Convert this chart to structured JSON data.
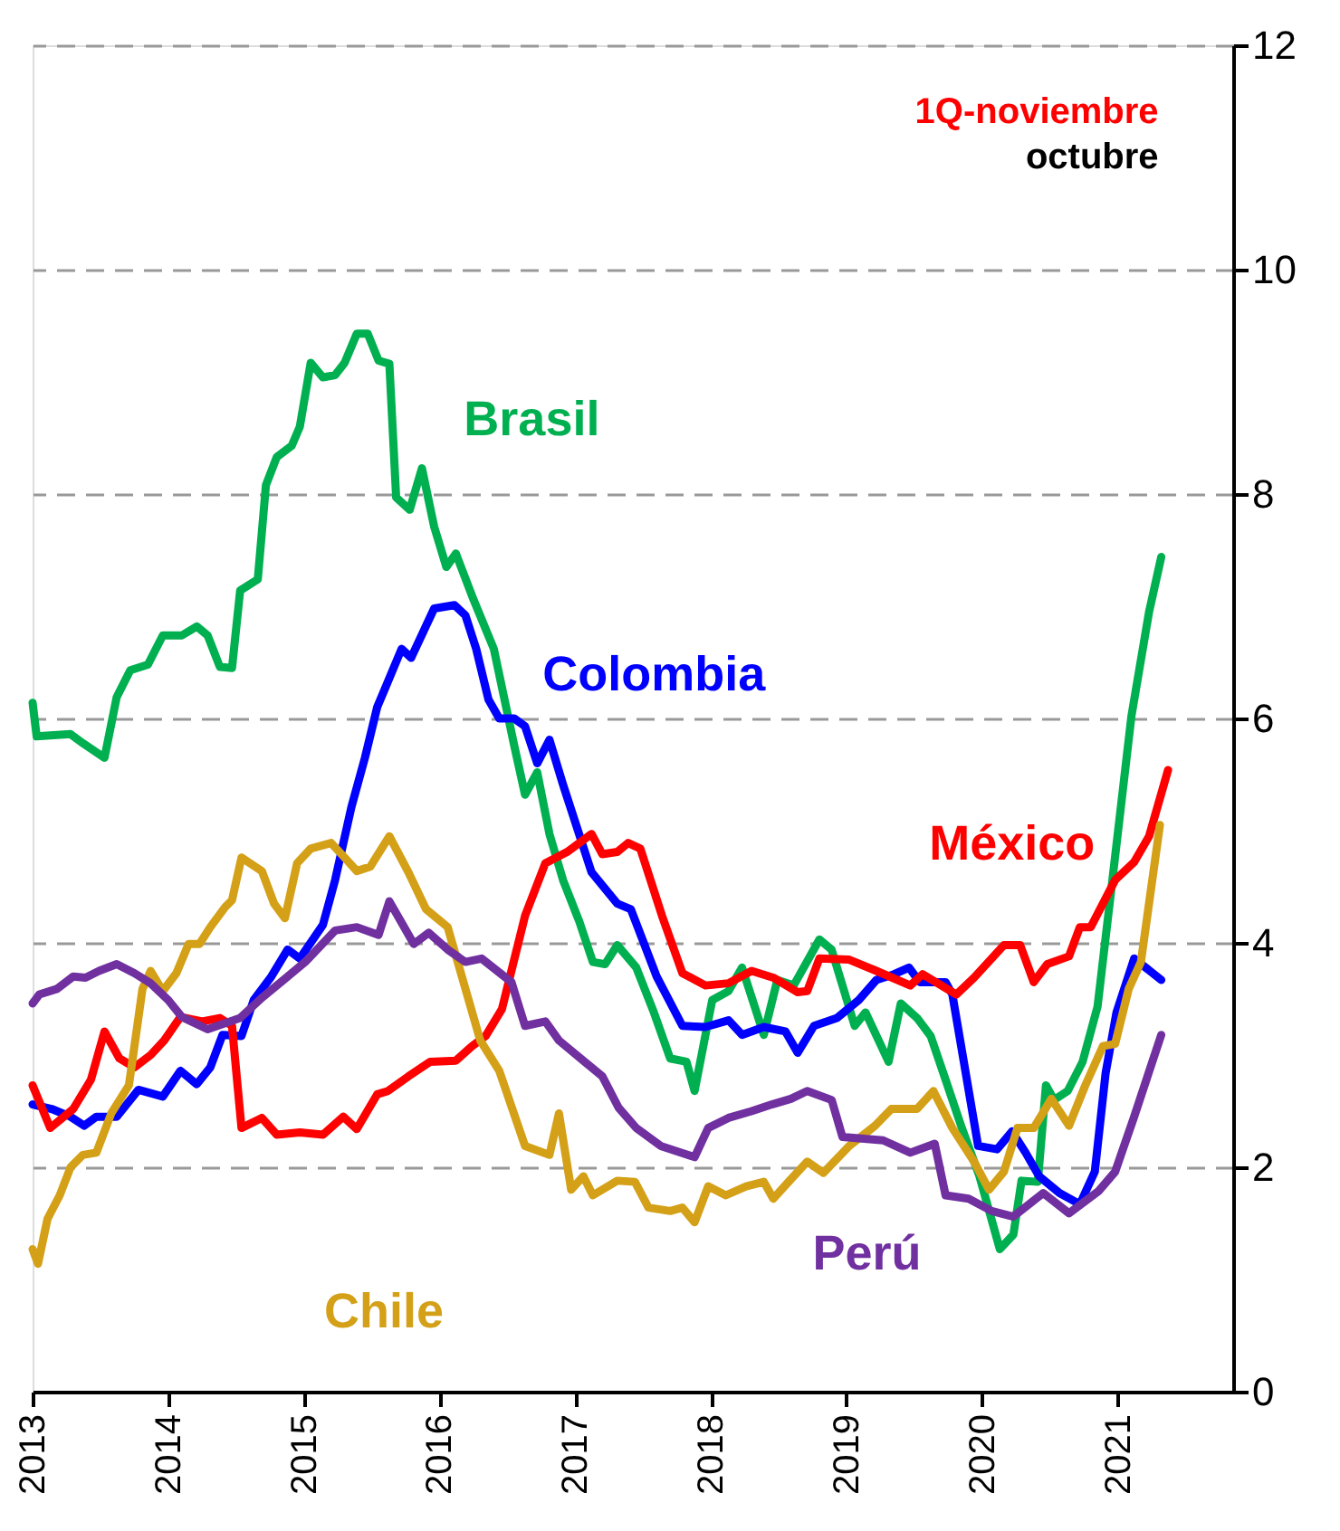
{
  "chart_data": {
    "type": "line",
    "xlim": [
      2013,
      2021.85
    ],
    "xticks": [
      2013,
      2014,
      2015,
      2016,
      2017,
      2018,
      2019,
      2020,
      2021
    ],
    "ylim": [
      0,
      12
    ],
    "yticks": [
      0,
      2,
      4,
      6,
      8,
      10,
      12
    ],
    "grid": "y",
    "legend": false,
    "line_style": "solid",
    "marker": "none",
    "annotations": [
      "1Q-noviembre",
      "octubre"
    ],
    "series": [
      {
        "name": "Brasil",
        "color": "#00b050",
        "x": [
          2013.0,
          2013.03,
          2013.28,
          2013.37,
          2013.53,
          2013.62,
          2013.72,
          2013.85,
          2013.96,
          2014.1,
          2014.21,
          2014.29,
          2014.38,
          2014.47,
          2014.53,
          2014.66,
          2014.72,
          2014.8,
          2014.91,
          2014.97,
          2015.05,
          2015.14,
          2015.23,
          2015.3,
          2015.39,
          2015.47,
          2015.55,
          2015.63,
          2015.68,
          2015.78,
          2015.87,
          2015.96,
          2016.05,
          2016.12,
          2016.25,
          2016.4,
          2016.55,
          2016.63,
          2016.72,
          2016.81,
          2016.91,
          2017.03,
          2017.13,
          2017.22,
          2017.31,
          2017.45,
          2017.58,
          2017.7,
          2017.82,
          2017.88,
          2018.01,
          2018.13,
          2018.23,
          2018.39,
          2018.49,
          2018.61,
          2018.8,
          2018.89,
          2019.06,
          2019.14,
          2019.31,
          2019.4,
          2019.52,
          2019.62,
          2019.73,
          2019.85,
          2019.98,
          2020.13,
          2020.23,
          2020.29,
          2020.41,
          2020.47,
          2020.53,
          2020.63,
          2020.74,
          2020.85,
          2020.95,
          2021.1,
          2021.23,
          2021.32
        ],
        "values": [
          6.14,
          5.84,
          5.86,
          5.78,
          5.65,
          6.19,
          6.43,
          6.48,
          6.74,
          6.74,
          6.82,
          6.74,
          6.46,
          6.45,
          7.14,
          7.24,
          8.08,
          8.33,
          8.43,
          8.6,
          9.17,
          9.04,
          9.06,
          9.17,
          9.43,
          9.43,
          9.19,
          9.16,
          7.97,
          7.86,
          8.23,
          7.71,
          7.35,
          7.47,
          7.06,
          6.62,
          5.76,
          5.32,
          5.52,
          4.97,
          4.56,
          4.19,
          3.83,
          3.81,
          3.98,
          3.78,
          3.38,
          2.97,
          2.94,
          2.68,
          3.49,
          3.57,
          3.78,
          3.18,
          3.67,
          3.62,
          4.03,
          3.94,
          3.26,
          3.38,
          2.94,
          3.46,
          3.33,
          3.17,
          2.78,
          2.35,
          1.92,
          1.27,
          1.4,
          1.88,
          1.87,
          2.73,
          2.6,
          2.68,
          2.94,
          3.43,
          4.46,
          6.02,
          6.95,
          7.44
        ]
      },
      {
        "name": "Colombia",
        "color": "#0000ff",
        "x": [
          2013.0,
          2013.14,
          2013.28,
          2013.38,
          2013.47,
          2013.62,
          2013.78,
          2013.96,
          2014.09,
          2014.21,
          2014.31,
          2014.4,
          2014.54,
          2014.63,
          2014.76,
          2014.88,
          2014.97,
          2015.14,
          2015.23,
          2015.35,
          2015.45,
          2015.54,
          2015.62,
          2015.72,
          2015.79,
          2015.96,
          2016.11,
          2016.19,
          2016.27,
          2016.36,
          2016.44,
          2016.55,
          2016.63,
          2016.72,
          2016.81,
          2016.91,
          2017.12,
          2017.31,
          2017.41,
          2017.6,
          2017.79,
          2017.96,
          2018.13,
          2018.23,
          2018.39,
          2018.55,
          2018.64,
          2018.76,
          2018.93,
          2019.09,
          2019.22,
          2019.35,
          2019.46,
          2019.54,
          2019.73,
          2019.78,
          2019.97,
          2020.11,
          2020.22,
          2020.32,
          2020.42,
          2020.57,
          2020.72,
          2020.83,
          2020.91,
          2020.99,
          2021.12,
          2021.32
        ],
        "values": [
          2.56,
          2.52,
          2.45,
          2.37,
          2.45,
          2.45,
          2.69,
          2.63,
          2.86,
          2.74,
          2.89,
          3.18,
          3.17,
          3.49,
          3.7,
          3.94,
          3.86,
          4.16,
          4.56,
          5.21,
          5.65,
          6.1,
          6.33,
          6.62,
          6.54,
          6.98,
          7.01,
          6.92,
          6.62,
          6.17,
          6.0,
          6.0,
          5.93,
          5.6,
          5.81,
          5.41,
          4.63,
          4.35,
          4.3,
          3.7,
          3.26,
          3.25,
          3.31,
          3.18,
          3.25,
          3.21,
          3.02,
          3.26,
          3.33,
          3.49,
          3.67,
          3.72,
          3.78,
          3.65,
          3.65,
          3.54,
          2.19,
          2.16,
          2.32,
          2.13,
          1.92,
          1.77,
          1.67,
          1.96,
          2.84,
          3.38,
          3.86,
          3.67
        ]
      },
      {
        "name": "México",
        "color": "#ff0000",
        "x": [
          2013.0,
          2013.13,
          2013.3,
          2013.43,
          2013.53,
          2013.64,
          2013.75,
          2013.87,
          2013.97,
          2014.09,
          2014.25,
          2014.38,
          2014.47,
          2014.54,
          2014.69,
          2014.8,
          2014.97,
          2015.14,
          2015.29,
          2015.39,
          2015.54,
          2015.62,
          2015.77,
          2015.93,
          2016.12,
          2016.24,
          2016.34,
          2016.46,
          2016.63,
          2016.78,
          2016.94,
          2017.12,
          2017.2,
          2017.31,
          2017.39,
          2017.48,
          2017.64,
          2017.79,
          2017.96,
          2018.13,
          2018.3,
          2018.46,
          2018.64,
          2018.71,
          2018.8,
          2019.02,
          2019.22,
          2019.47,
          2019.56,
          2019.81,
          2019.94,
          2020.16,
          2020.28,
          2020.38,
          2020.48,
          2020.64,
          2020.72,
          2020.8,
          2020.98,
          2021.12,
          2021.23,
          2021.37
        ],
        "values": [
          2.73,
          2.35,
          2.52,
          2.78,
          3.21,
          2.97,
          2.89,
          3.0,
          3.13,
          3.34,
          3.3,
          3.33,
          3.26,
          2.35,
          2.44,
          2.29,
          2.31,
          2.29,
          2.45,
          2.34,
          2.65,
          2.68,
          2.81,
          2.94,
          2.95,
          3.08,
          3.17,
          3.41,
          4.24,
          4.71,
          4.81,
          4.97,
          4.79,
          4.81,
          4.89,
          4.84,
          4.24,
          3.73,
          3.62,
          3.64,
          3.75,
          3.69,
          3.56,
          3.57,
          3.86,
          3.85,
          3.75,
          3.62,
          3.72,
          3.54,
          3.69,
          3.98,
          3.98,
          3.65,
          3.81,
          3.88,
          4.14,
          4.14,
          4.56,
          4.72,
          4.95,
          5.54
        ]
      },
      {
        "name": "Chile",
        "color": "#d4a017",
        "x": [
          2013.0,
          2013.04,
          2013.11,
          2013.2,
          2013.28,
          2013.37,
          2013.47,
          2013.58,
          2013.71,
          2013.81,
          2013.87,
          2013.96,
          2014.06,
          2014.15,
          2014.23,
          2014.31,
          2014.42,
          2014.47,
          2014.54,
          2014.69,
          2014.78,
          2014.86,
          2014.95,
          2015.05,
          2015.2,
          2015.3,
          2015.39,
          2015.49,
          2015.63,
          2015.77,
          2015.9,
          2016.06,
          2016.3,
          2016.44,
          2016.63,
          2016.81,
          2016.88,
          2016.97,
          2017.06,
          2017.13,
          2017.31,
          2017.44,
          2017.54,
          2017.7,
          2017.79,
          2017.88,
          2017.98,
          2018.11,
          2018.26,
          2018.39,
          2018.46,
          2018.58,
          2018.71,
          2018.83,
          2019.02,
          2019.21,
          2019.33,
          2019.52,
          2019.64,
          2019.78,
          2019.94,
          2020.05,
          2020.16,
          2020.26,
          2020.38,
          2020.51,
          2020.64,
          2020.76,
          2020.89,
          2020.98,
          2021.08,
          2021.17,
          2021.31
        ],
        "values": [
          1.27,
          1.14,
          1.54,
          1.75,
          2.0,
          2.11,
          2.13,
          2.48,
          2.73,
          3.59,
          3.75,
          3.57,
          3.73,
          3.99,
          3.99,
          4.14,
          4.32,
          4.38,
          4.76,
          4.64,
          4.35,
          4.22,
          4.71,
          4.84,
          4.89,
          4.76,
          4.64,
          4.68,
          4.95,
          4.63,
          4.3,
          4.14,
          3.13,
          2.86,
          2.19,
          2.11,
          2.48,
          1.8,
          1.92,
          1.75,
          1.88,
          1.87,
          1.64,
          1.61,
          1.64,
          1.51,
          1.83,
          1.75,
          1.83,
          1.87,
          1.72,
          1.88,
          2.05,
          1.95,
          2.19,
          2.37,
          2.52,
          2.52,
          2.68,
          2.35,
          2.05,
          1.8,
          1.96,
          2.35,
          2.35,
          2.61,
          2.37,
          2.73,
          3.08,
          3.1,
          3.59,
          3.83,
          5.05
        ]
      },
      {
        "name": "Perú",
        "color": "#7030a0",
        "x": [
          2013.0,
          2013.05,
          2013.18,
          2013.3,
          2013.39,
          2013.49,
          2013.62,
          2013.75,
          2013.87,
          2014.0,
          2014.1,
          2014.29,
          2014.53,
          2014.69,
          2014.85,
          2015.01,
          2015.23,
          2015.39,
          2015.55,
          2015.63,
          2015.81,
          2015.92,
          2016.06,
          2016.19,
          2016.31,
          2016.53,
          2016.63,
          2016.78,
          2016.88,
          2017.07,
          2017.2,
          2017.32,
          2017.45,
          2017.63,
          2017.88,
          2017.98,
          2018.13,
          2018.3,
          2018.45,
          2018.59,
          2018.71,
          2018.89,
          2018.97,
          2019.27,
          2019.47,
          2019.65,
          2019.73,
          2019.9,
          2020.07,
          2020.23,
          2020.45,
          2020.64,
          2020.86,
          2020.98,
          2021.12,
          2021.32
        ],
        "values": [
          3.46,
          3.54,
          3.59,
          3.7,
          3.69,
          3.75,
          3.81,
          3.73,
          3.64,
          3.49,
          3.34,
          3.23,
          3.33,
          3.51,
          3.67,
          3.83,
          4.11,
          4.14,
          4.07,
          4.37,
          3.99,
          4.09,
          3.94,
          3.83,
          3.86,
          3.65,
          3.26,
          3.3,
          3.13,
          2.94,
          2.81,
          2.53,
          2.35,
          2.19,
          2.09,
          2.35,
          2.44,
          2.5,
          2.56,
          2.61,
          2.68,
          2.6,
          2.27,
          2.24,
          2.13,
          2.21,
          1.75,
          1.72,
          1.61,
          1.56,
          1.77,
          1.59,
          1.79,
          1.96,
          2.45,
          3.18
        ]
      }
    ]
  }
}
